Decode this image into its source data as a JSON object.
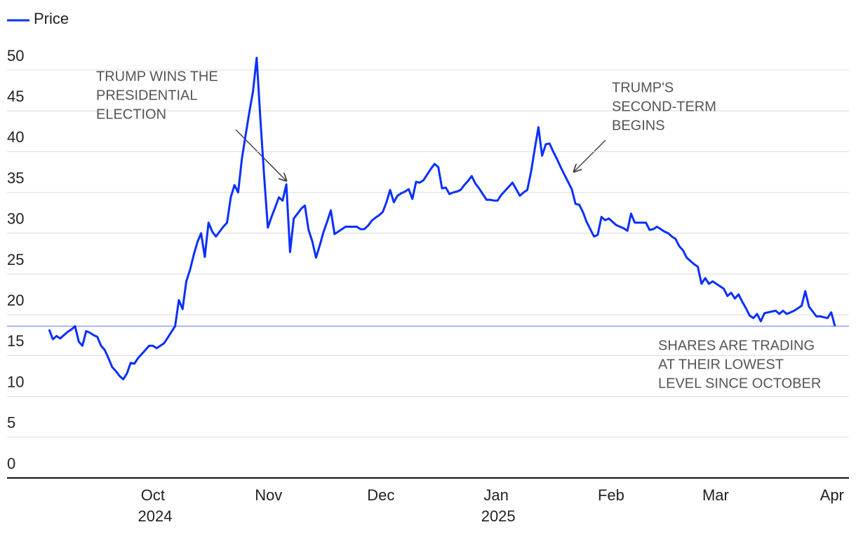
{
  "chart_data": {
    "type": "line",
    "series": [
      {
        "name": "Price",
        "color": "#0a2fff",
        "values": [
          18.2,
          17.0,
          17.4,
          17.1,
          17.5,
          17.9,
          18.2,
          18.6,
          16.7,
          16.2,
          18.0,
          17.8,
          17.5,
          17.3,
          16.2,
          15.7,
          14.7,
          13.6,
          13.1,
          12.5,
          12.1,
          12.8,
          14.1,
          14.0,
          14.7,
          15.2,
          15.7,
          16.2,
          16.2,
          15.9,
          16.2,
          16.5,
          17.2,
          17.9,
          18.6,
          21.8,
          20.7,
          24.1,
          25.5,
          27.3,
          28.9,
          30.0,
          27.1,
          31.3,
          30.2,
          29.6,
          30.2,
          30.8,
          31.3,
          34.4,
          35.9,
          35.0,
          39.1,
          42.0,
          44.8,
          47.4,
          51.5,
          44.0,
          37.1,
          30.7,
          32.0,
          33.2,
          34.4,
          34.0,
          36.0,
          27.7,
          31.8,
          32.4,
          33.0,
          33.4,
          30.4,
          29.0,
          27.0,
          28.5,
          30.1,
          31.4,
          32.8,
          29.9,
          30.2,
          30.5,
          30.8,
          30.8,
          30.8,
          30.8,
          30.5,
          30.5,
          30.9,
          31.5,
          31.9,
          32.2,
          32.6,
          33.8,
          35.3,
          33.8,
          34.6,
          34.9,
          35.1,
          35.4,
          34.2,
          36.3,
          36.2,
          36.5,
          37.2,
          37.9,
          38.5,
          38.1,
          35.5,
          35.6,
          34.8,
          35.0,
          35.1,
          35.3,
          35.9,
          36.4,
          37.0,
          36.1,
          35.5,
          34.8,
          34.1,
          34.1,
          34.0,
          34.0,
          34.7,
          35.2,
          35.7,
          36.2,
          35.4,
          34.6,
          35.0,
          35.3,
          37.5,
          40.3,
          43.0,
          39.5,
          40.9,
          41.0,
          40.0,
          39.1,
          38.1,
          37.2,
          36.3,
          35.4,
          33.6,
          33.5,
          32.6,
          31.4,
          30.5,
          29.6,
          29.8,
          32.0,
          31.6,
          31.8,
          31.4,
          31.0,
          30.8,
          30.6,
          30.3,
          32.4,
          31.3,
          31.3,
          31.3,
          31.3,
          30.4,
          30.5,
          30.8,
          30.5,
          30.2,
          30.0,
          29.6,
          29.3,
          28.4,
          27.9,
          27.0,
          26.6,
          26.2,
          25.9,
          23.8,
          24.5,
          23.8,
          24.1,
          23.8,
          23.5,
          23.2,
          22.3,
          22.7,
          22.0,
          22.5,
          21.6,
          20.8,
          19.9,
          19.6,
          20.1,
          19.2,
          20.2,
          20.3,
          20.4,
          20.5,
          20.1,
          20.5,
          20.1,
          20.3,
          20.5,
          20.8,
          21.1,
          22.9,
          21.0,
          20.4,
          19.8,
          19.8,
          19.7,
          19.6,
          20.3,
          18.6
        ]
      }
    ],
    "reference_line": {
      "value": 18.6,
      "color": "#8c9dff"
    },
    "xlim": [
      0,
      212
    ],
    "xticks": [
      {
        "value": 28,
        "label": "Oct 2024"
      },
      {
        "value": 59.2,
        "label": "Nov"
      },
      {
        "value": 89.5,
        "label": "Dec"
      },
      {
        "value": 120.6,
        "label": "Jan 2025"
      },
      {
        "value": 151.6,
        "label": "Feb"
      },
      {
        "value": 179.8,
        "label": "Mar"
      },
      {
        "value": 211.2,
        "label": "Apr"
      }
    ],
    "ylim": [
      0,
      50
    ],
    "yticks": [
      0,
      5,
      10,
      15,
      20,
      25,
      30,
      35,
      40,
      45,
      50
    ],
    "grid": true,
    "legend": "top-left",
    "annotations": [
      {
        "lines": [
          "TRUMP WINS THE",
          "PRESIDENTIAL",
          "ELECTION"
        ]
      },
      {
        "lines": [
          "TRUMP'S",
          "SECOND-TERM",
          "BEGINS"
        ]
      },
      {
        "lines": [
          "SHARES ARE TRADING",
          "AT THEIR LOWEST",
          "LEVEL SINCE OCTOBER"
        ]
      }
    ]
  }
}
